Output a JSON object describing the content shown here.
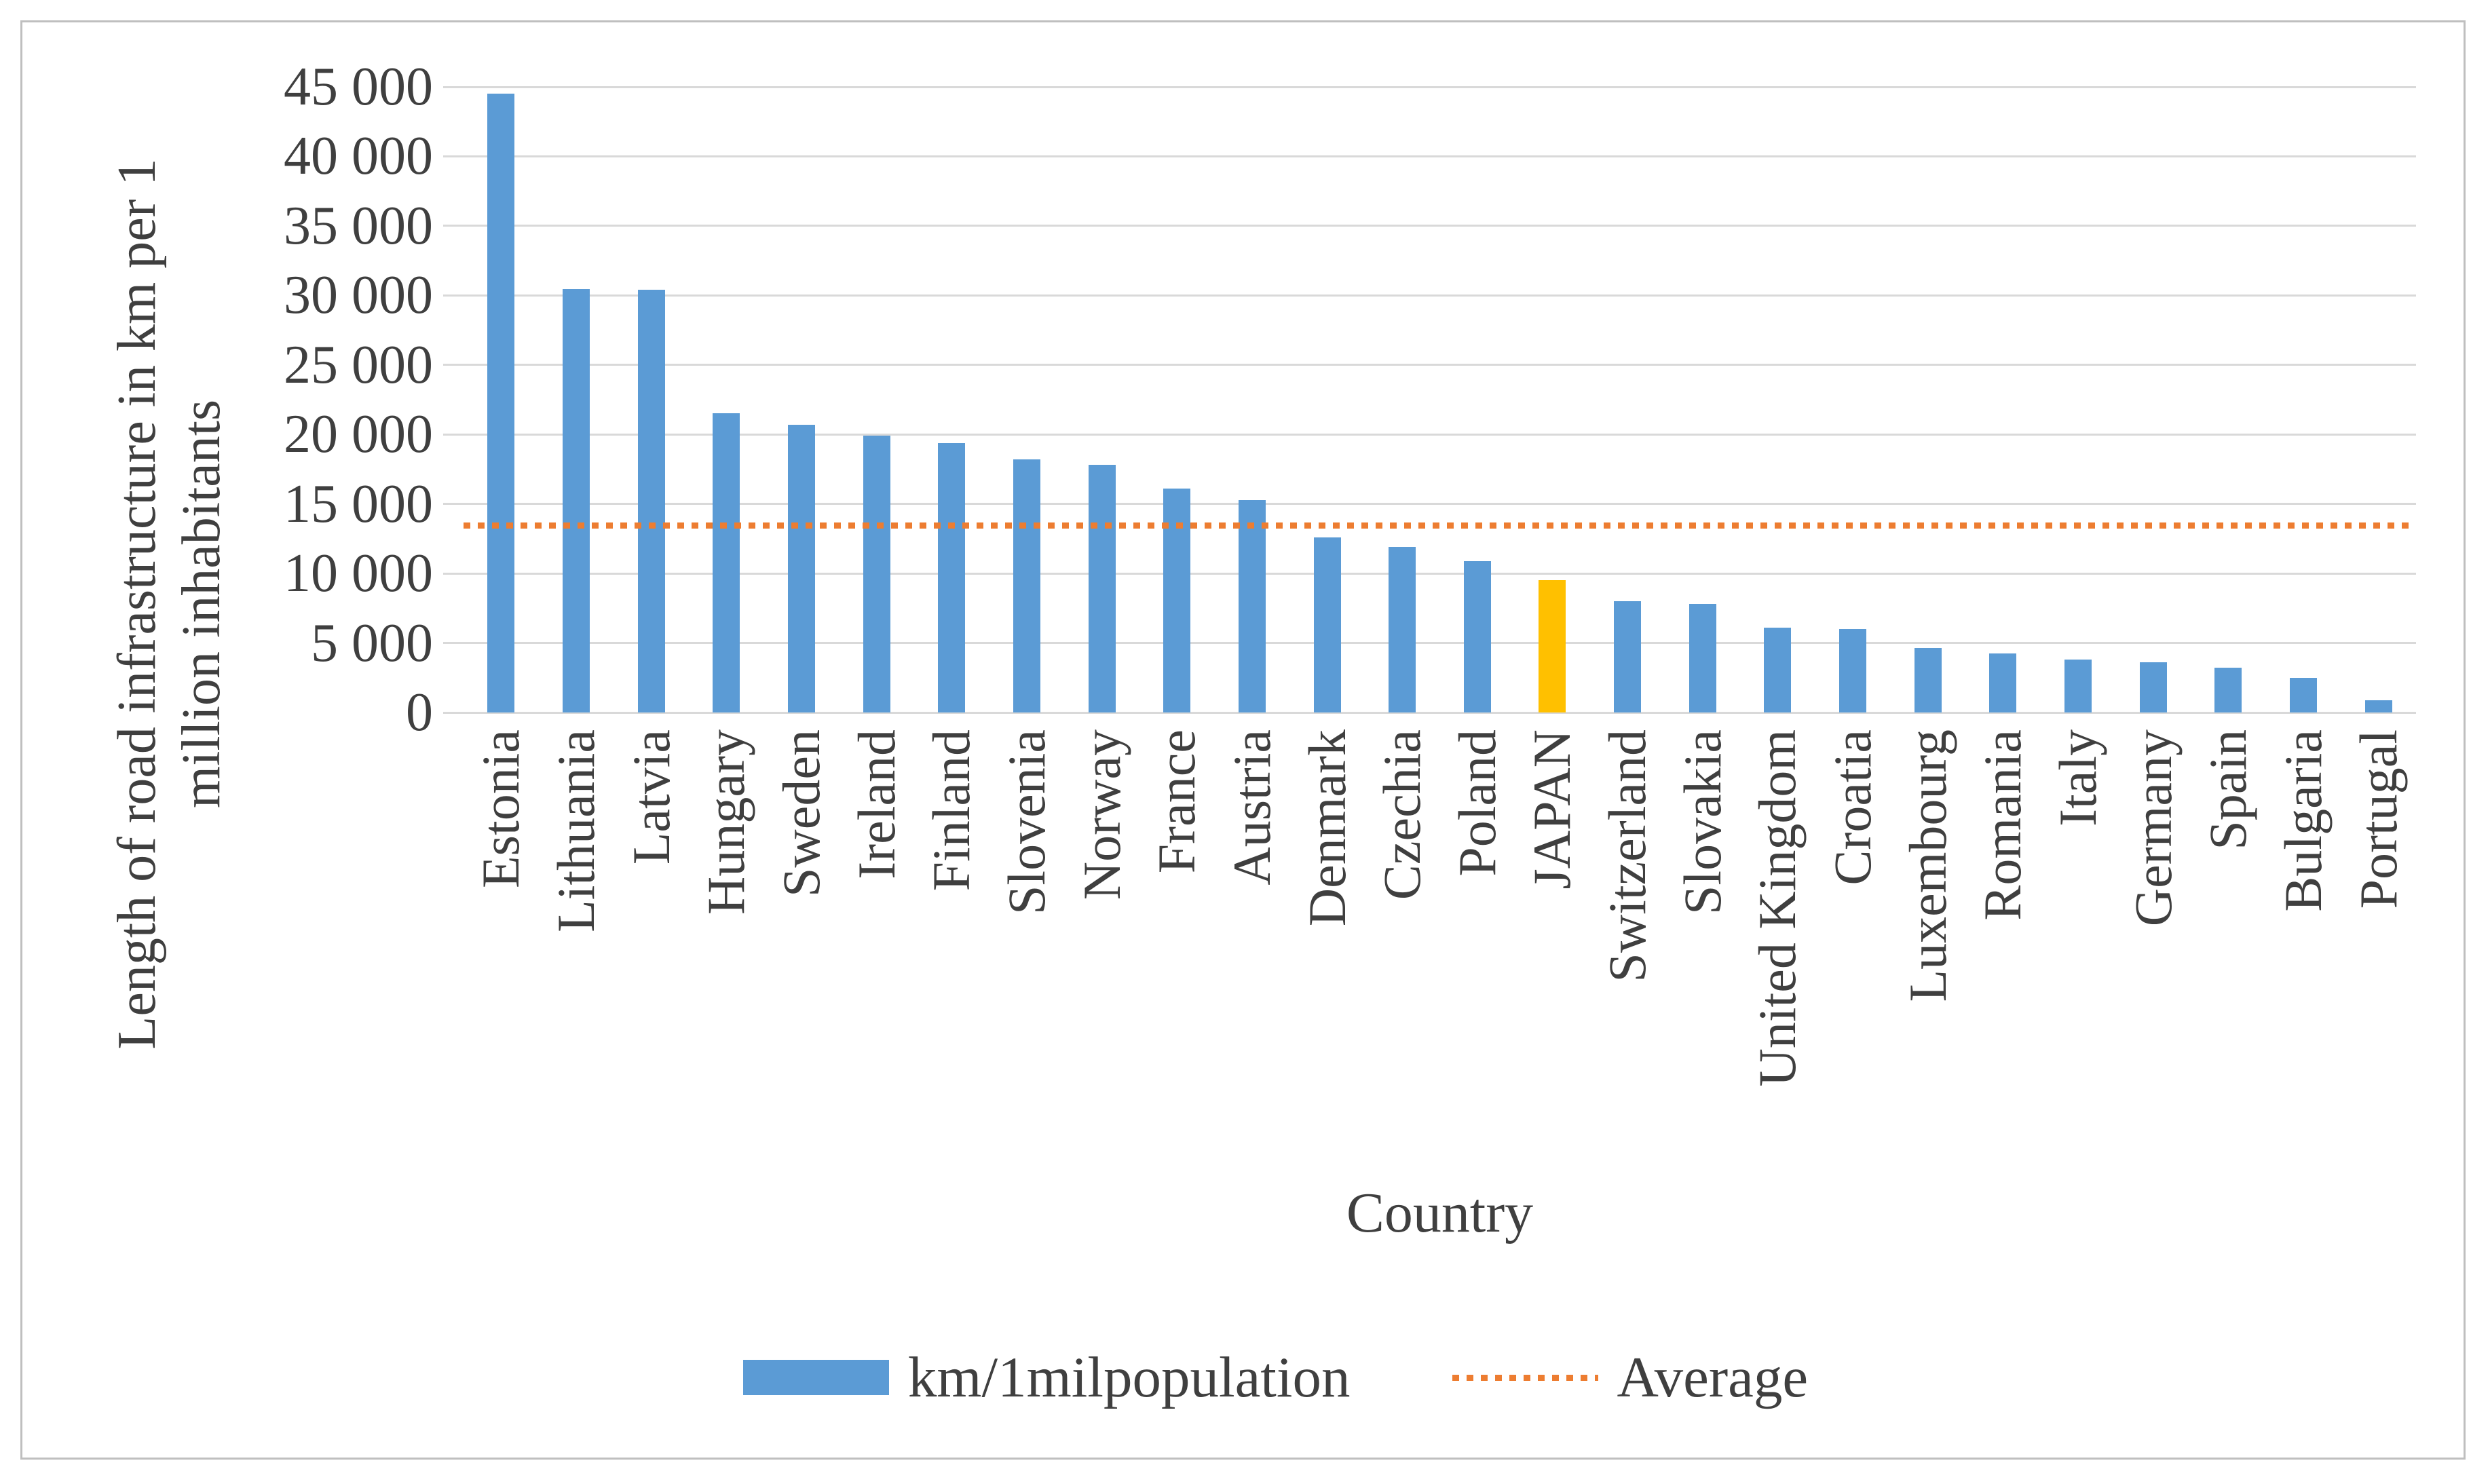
{
  "figure": {
    "background": "#ffffff",
    "border_color": "#bfbfbf",
    "text_color": "#3f3f3f",
    "gridline_color": "#d9d9d9"
  },
  "y_axis": {
    "title_line1": "Length of road infrastructure in km per 1",
    "title_line2": "million inhabitants",
    "tick_labels": [
      "0",
      "5 000",
      "10 000",
      "15 000",
      "20 000",
      "25 000",
      "30 000",
      "35 000",
      "40 000",
      "45 000"
    ]
  },
  "x_axis": {
    "title": "Country"
  },
  "legend": {
    "series_label": "km/1milpopulation",
    "average_label": "Average",
    "series_color": "#5b9bd5",
    "average_color": "#ed7d31"
  },
  "chart_data": {
    "type": "bar",
    "title": "",
    "xlabel": "Country",
    "ylabel": "Length of road infrastructure in km per 1 million inhabitants",
    "ylim": [
      0,
      45000
    ],
    "ytick_step": 5000,
    "grid": true,
    "legend_position": "bottom",
    "bar_color": "#5b9bd5",
    "highlight_category": "JAPAN",
    "highlight_color": "#ffc000",
    "series_name": "km/1milpopulation",
    "categories": [
      "Estonia",
      "Lithuania",
      "Latvia",
      "Hungary",
      "Sweden",
      "Ireland",
      "Finland",
      "Slovenia",
      "Norway",
      "France",
      "Austria",
      "Denmark",
      "Czechia",
      "Poland",
      "JAPAN",
      "Switzerland",
      "Slovakia",
      "United Kingdom",
      "Croatia",
      "Luxembourg",
      "Romania",
      "Italy",
      "Germany",
      "Spain",
      "Bulgaria",
      "Portugal"
    ],
    "values": [
      44500,
      30450,
      30400,
      21500,
      20700,
      19900,
      19400,
      18200,
      17800,
      16100,
      15300,
      12600,
      11900,
      10900,
      9500,
      8000,
      7800,
      6100,
      6000,
      4650,
      4250,
      3800,
      3600,
      3200,
      2500,
      900
    ],
    "average_line": {
      "label": "Average",
      "value": 13460,
      "style": "dotted",
      "color": "#ed7d31"
    }
  }
}
